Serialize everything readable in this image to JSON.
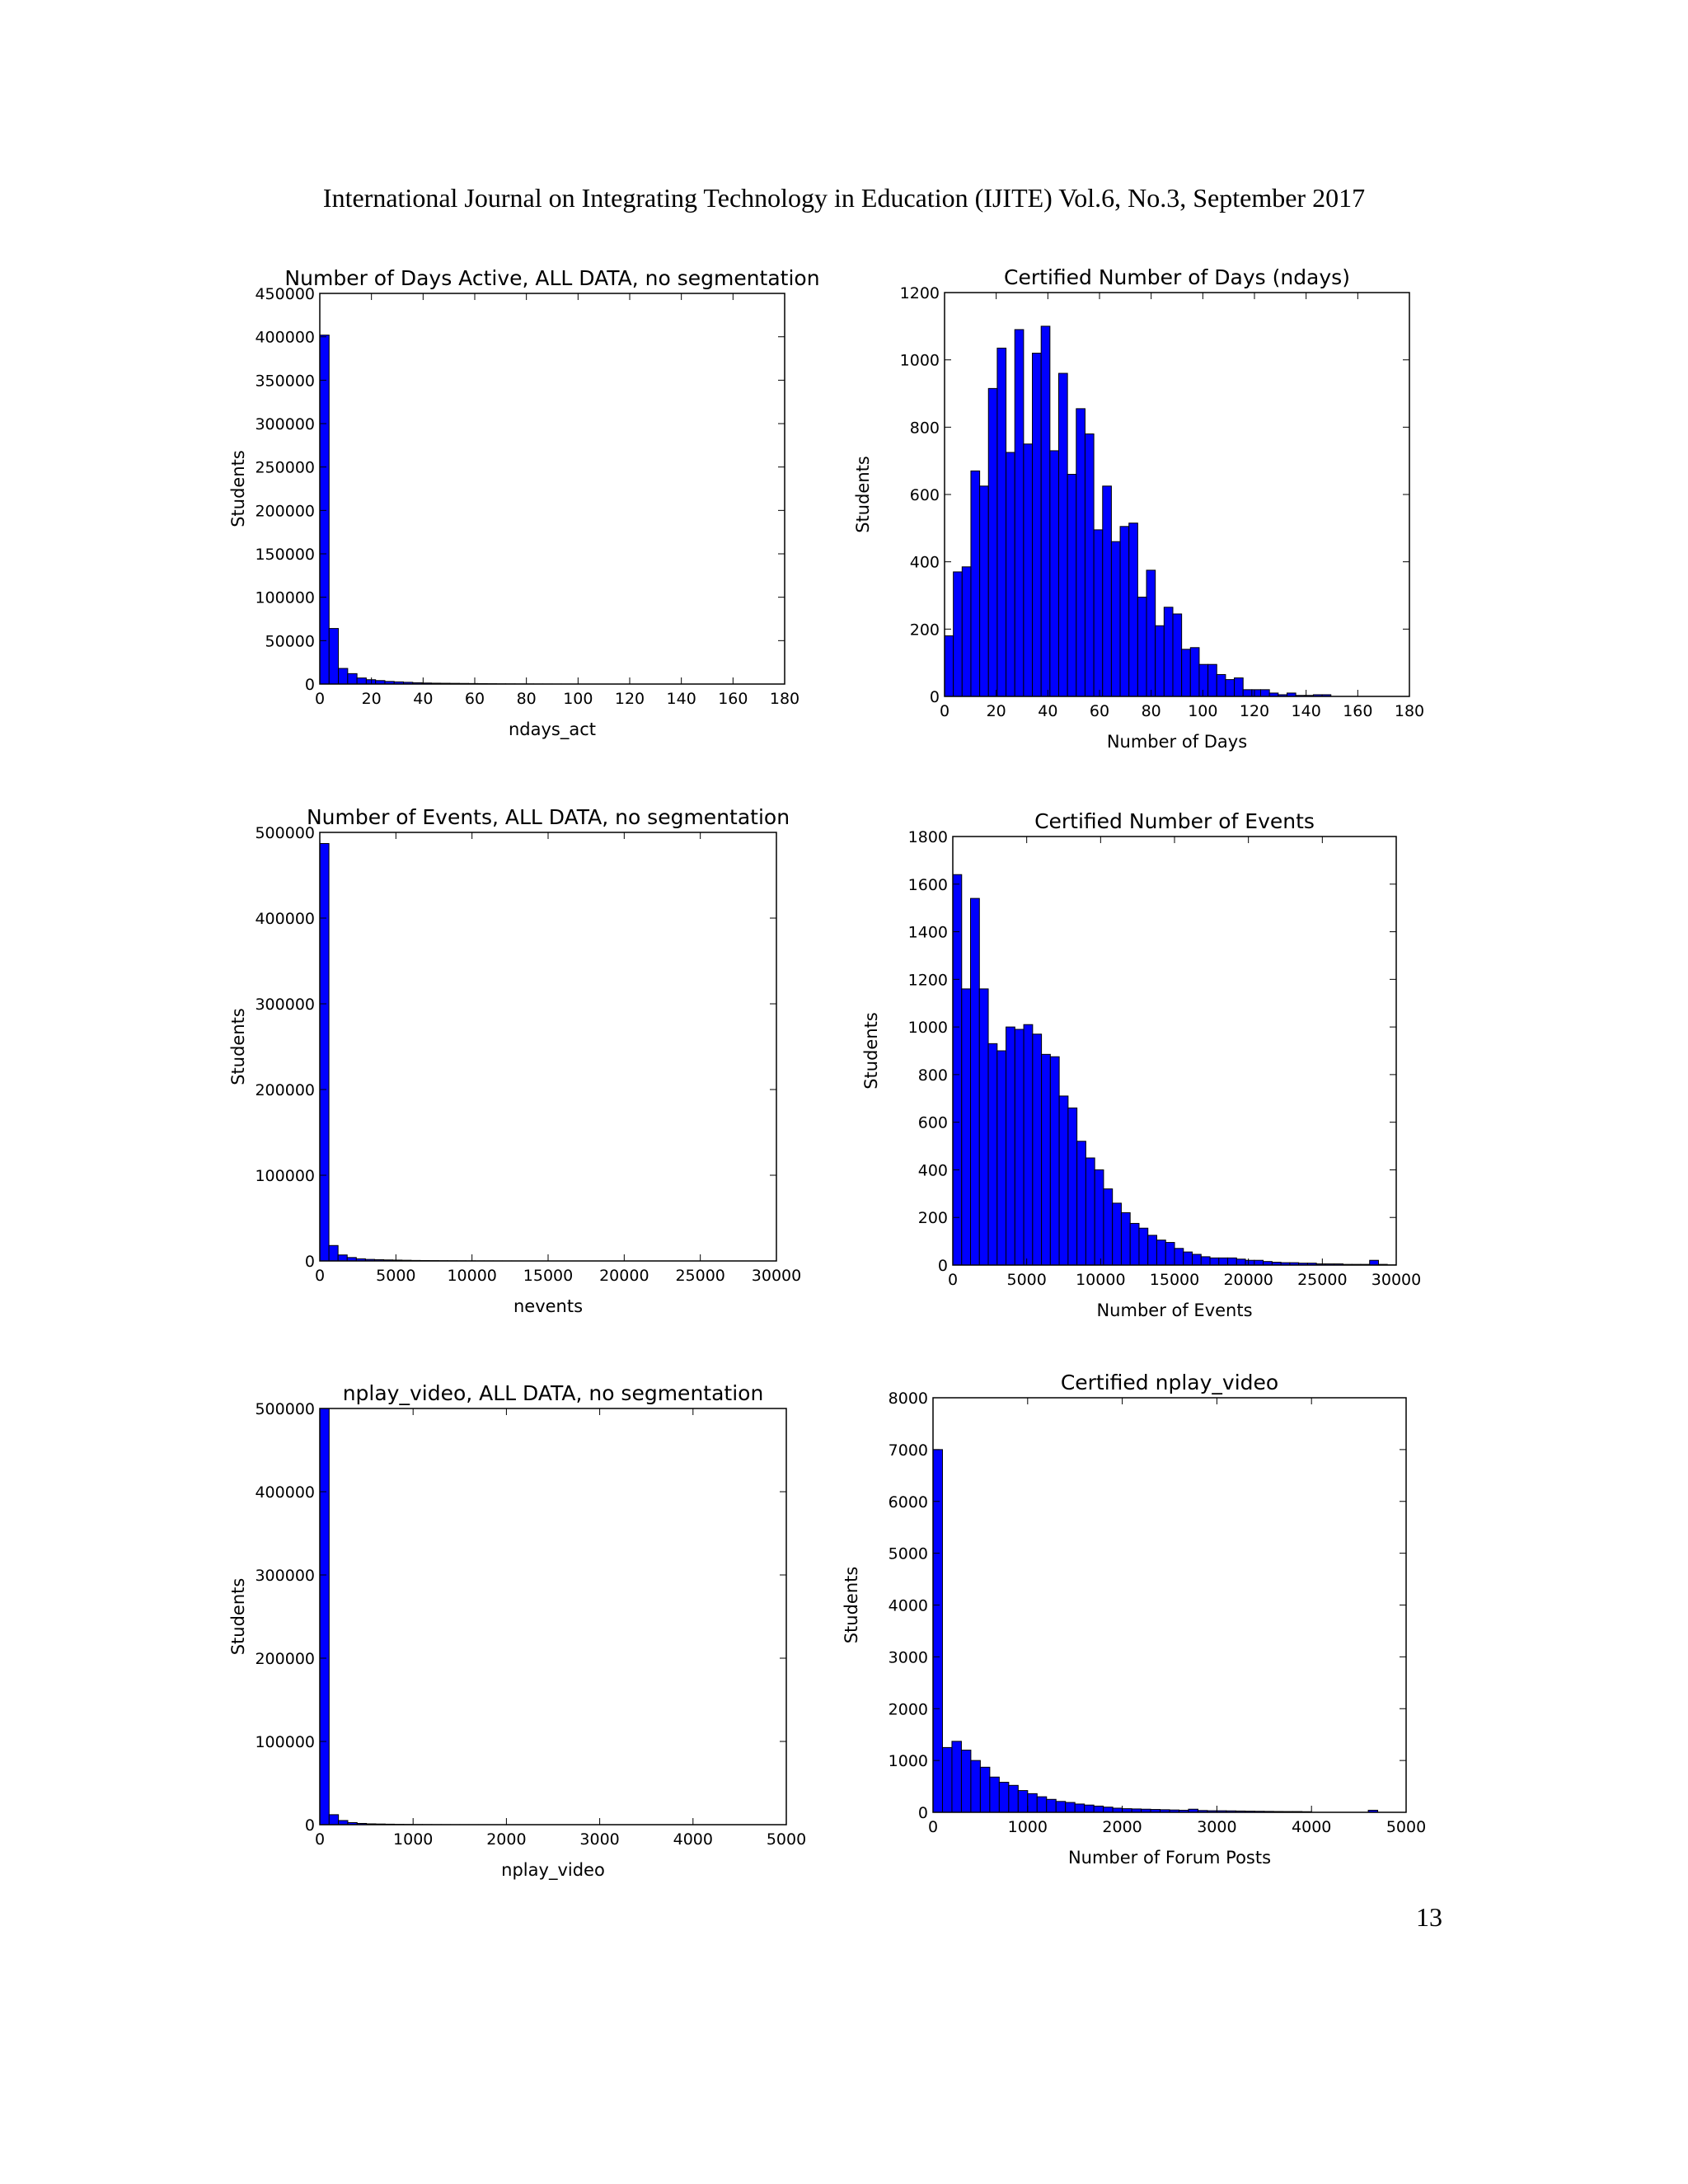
{
  "page": {
    "header": "International Journal on Integrating Technology in Education (IJITE) Vol.6, No.3, September 2017",
    "page_number": "13"
  },
  "chart_data": [
    {
      "type": "bar",
      "title": "Number of Days Active, ALL DATA, no segmentation",
      "xlabel": "ndays_act",
      "ylabel": "Students",
      "xlim": [
        0,
        180
      ],
      "ylim": [
        0,
        450000
      ],
      "xticks": [
        0,
        20,
        40,
        60,
        80,
        100,
        120,
        140,
        160,
        180
      ],
      "yticks": [
        0,
        50000,
        100000,
        150000,
        200000,
        250000,
        300000,
        350000,
        400000,
        450000
      ],
      "bin_start": 0,
      "bin_width": 3.6,
      "values": [
        402000,
        64000,
        18000,
        12000,
        7000,
        5000,
        4000,
        3000,
        2500,
        2000,
        1500,
        1200,
        1000,
        900,
        800,
        700,
        600,
        500,
        400,
        300,
        250,
        200,
        150,
        100,
        80,
        60,
        40,
        30,
        20,
        10,
        5,
        3,
        2,
        1,
        1,
        0,
        0,
        0,
        0,
        0,
        0,
        0,
        0,
        0,
        0,
        0,
        0,
        0,
        0,
        0
      ],
      "bar_color": "#0000ff",
      "grid": false
    },
    {
      "type": "bar",
      "title": "Certified Number of Days (ndays)",
      "xlabel": "Number of Days",
      "ylabel": "Students",
      "xlim": [
        0,
        180
      ],
      "ylim": [
        0,
        1200
      ],
      "xticks": [
        0,
        20,
        40,
        60,
        80,
        100,
        120,
        140,
        160,
        180
      ],
      "yticks": [
        0,
        200,
        400,
        600,
        800,
        1000,
        1200
      ],
      "bin_start": 0,
      "bin_width": 3.4,
      "values": [
        180,
        370,
        385,
        670,
        625,
        915,
        1035,
        725,
        1090,
        750,
        1020,
        1100,
        730,
        960,
        660,
        855,
        780,
        495,
        625,
        460,
        505,
        515,
        295,
        375,
        210,
        265,
        245,
        140,
        145,
        95,
        95,
        65,
        50,
        55,
        20,
        20,
        20,
        10,
        5,
        10,
        3,
        3,
        5,
        5,
        0,
        0,
        0,
        0,
        0,
        0
      ],
      "bar_color": "#0000ff",
      "grid": false
    },
    {
      "type": "bar",
      "title": "Number of Events, ALL DATA, no segmentation",
      "xlabel": "nevents",
      "ylabel": "Students",
      "xlim": [
        0,
        30000
      ],
      "ylim": [
        0,
        500000
      ],
      "xticks": [
        0,
        5000,
        10000,
        15000,
        20000,
        25000,
        30000
      ],
      "yticks": [
        0,
        100000,
        200000,
        300000,
        400000,
        500000
      ],
      "bin_start": 0,
      "bin_width": 600,
      "values": [
        487000,
        18000,
        7000,
        4000,
        2500,
        1800,
        1500,
        1200,
        1000,
        800,
        600,
        500,
        400,
        300,
        250,
        200,
        150,
        100,
        80,
        60,
        40,
        30,
        20,
        10,
        5,
        3,
        2,
        1,
        1,
        0,
        0,
        0,
        0,
        0,
        0,
        0,
        0,
        0,
        0,
        0,
        0,
        0,
        0,
        0,
        0,
        0,
        0,
        0,
        0,
        0
      ],
      "bar_color": "#0000ff",
      "grid": false
    },
    {
      "type": "bar",
      "title": "Certified Number of Events",
      "xlabel": "Number of Events",
      "ylabel": "Students",
      "xlim": [
        0,
        30000
      ],
      "ylim": [
        0,
        1800
      ],
      "xticks": [
        0,
        5000,
        10000,
        15000,
        20000,
        25000,
        30000
      ],
      "yticks": [
        0,
        200,
        400,
        600,
        800,
        1000,
        1200,
        1400,
        1600,
        1800
      ],
      "bin_start": 0,
      "bin_width": 600,
      "values": [
        1640,
        1160,
        1540,
        1160,
        930,
        900,
        1000,
        990,
        1010,
        970,
        885,
        875,
        710,
        660,
        520,
        450,
        400,
        320,
        260,
        220,
        175,
        155,
        125,
        105,
        95,
        70,
        55,
        45,
        35,
        30,
        30,
        30,
        25,
        20,
        20,
        15,
        12,
        10,
        10,
        8,
        8,
        5,
        5,
        5,
        3,
        3,
        3,
        20,
        3,
        1
      ],
      "bar_color": "#0000ff",
      "grid": false
    },
    {
      "type": "bar",
      "title": "nplay_video, ALL DATA, no segmentation",
      "xlabel": "nplay_video",
      "ylabel": "Students",
      "xlim": [
        0,
        5000
      ],
      "ylim": [
        0,
        500000
      ],
      "xticks": [
        0,
        1000,
        2000,
        3000,
        4000,
        5000
      ],
      "yticks": [
        0,
        100000,
        200000,
        300000,
        400000,
        500000
      ],
      "bin_start": 0,
      "bin_width": 100,
      "values": [
        500000,
        12000,
        5000,
        2500,
        1500,
        1000,
        800,
        600,
        400,
        300,
        200,
        150,
        100,
        80,
        60,
        40,
        30,
        20,
        10,
        5,
        3,
        2,
        1,
        1,
        0,
        0,
        0,
        0,
        0,
        0,
        0,
        0,
        0,
        0,
        0,
        0,
        0,
        0,
        0,
        0,
        0,
        0,
        0,
        0,
        0,
        0,
        0,
        0,
        0,
        0
      ],
      "bar_color": "#0000ff",
      "grid": false
    },
    {
      "type": "bar",
      "title": "Certified nplay_video",
      "xlabel": "Number of Forum Posts",
      "ylabel": "Students",
      "xlim": [
        0,
        5000
      ],
      "ylim": [
        0,
        8000
      ],
      "xticks": [
        0,
        1000,
        2000,
        3000,
        4000,
        5000
      ],
      "yticks": [
        0,
        1000,
        2000,
        3000,
        4000,
        5000,
        6000,
        7000,
        8000
      ],
      "bin_start": 0,
      "bin_width": 100,
      "values": [
        7000,
        1250,
        1370,
        1200,
        1000,
        870,
        680,
        580,
        520,
        420,
        360,
        300,
        250,
        210,
        190,
        160,
        140,
        120,
        100,
        80,
        70,
        65,
        60,
        55,
        50,
        45,
        40,
        60,
        35,
        30,
        30,
        28,
        25,
        22,
        20,
        18,
        16,
        15,
        15,
        12,
        0,
        0,
        0,
        0,
        0,
        0,
        40,
        0,
        0,
        0
      ],
      "bar_color": "#0000ff",
      "grid": false
    }
  ]
}
